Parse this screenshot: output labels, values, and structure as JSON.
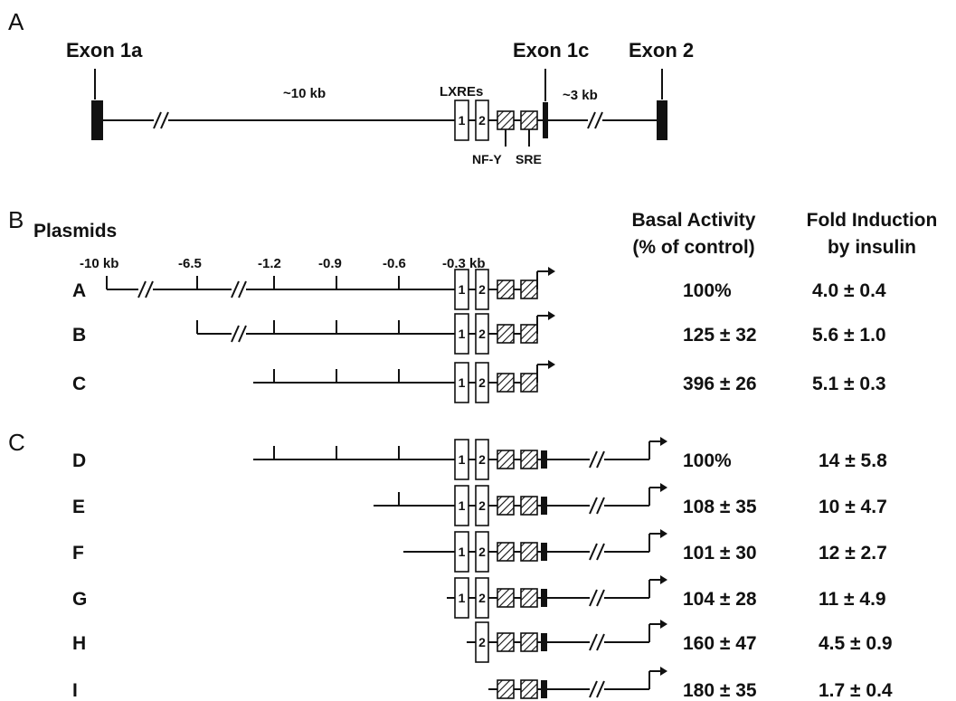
{
  "panels": {
    "a": "A",
    "b": "B",
    "c": "C"
  },
  "gene": {
    "exon1a": "Exon 1a",
    "exon1c": "Exon 1c",
    "exon2": "Exon 2",
    "dist_10kb": "~10 kb",
    "dist_3kb": "~3 kb",
    "lxres": "LXREs",
    "lxre1": "1",
    "lxre2": "2",
    "nfy": "NF-Y",
    "sre": "SRE"
  },
  "plasmids_label": "Plasmids",
  "scale_ticks": [
    "-10 kb",
    "-6.5",
    "-1.2",
    "-0.9",
    "-0.6",
    "-0.3 kb"
  ],
  "headers": {
    "basal_line1": "Basal Activity",
    "basal_line2": "(% of control)",
    "fold_line1": "Fold Induction",
    "fold_line2": "by insulin"
  },
  "constructs": [
    {
      "name": "A",
      "basal": "100%",
      "fold": "4.0 ± 0.4"
    },
    {
      "name": "B",
      "basal": "125 ± 32",
      "fold": "5.6 ± 1.0"
    },
    {
      "name": "C",
      "basal": "396 ± 26",
      "fold": "5.1 ± 0.3"
    },
    {
      "name": "D",
      "basal": "100%",
      "fold": "14 ± 5.8"
    },
    {
      "name": "E",
      "basal": "108 ± 35",
      "fold": "10 ± 4.7"
    },
    {
      "name": "F",
      "basal": "101 ± 30",
      "fold": "12 ± 2.7"
    },
    {
      "name": "G",
      "basal": "104 ± 28",
      "fold": "11 ± 4.9"
    },
    {
      "name": "H",
      "basal": "160 ± 47",
      "fold": "4.5 ± 0.9"
    },
    {
      "name": "I",
      "basal": "180 ± 35",
      "fold": "1.7 ± 0.4"
    }
  ]
}
